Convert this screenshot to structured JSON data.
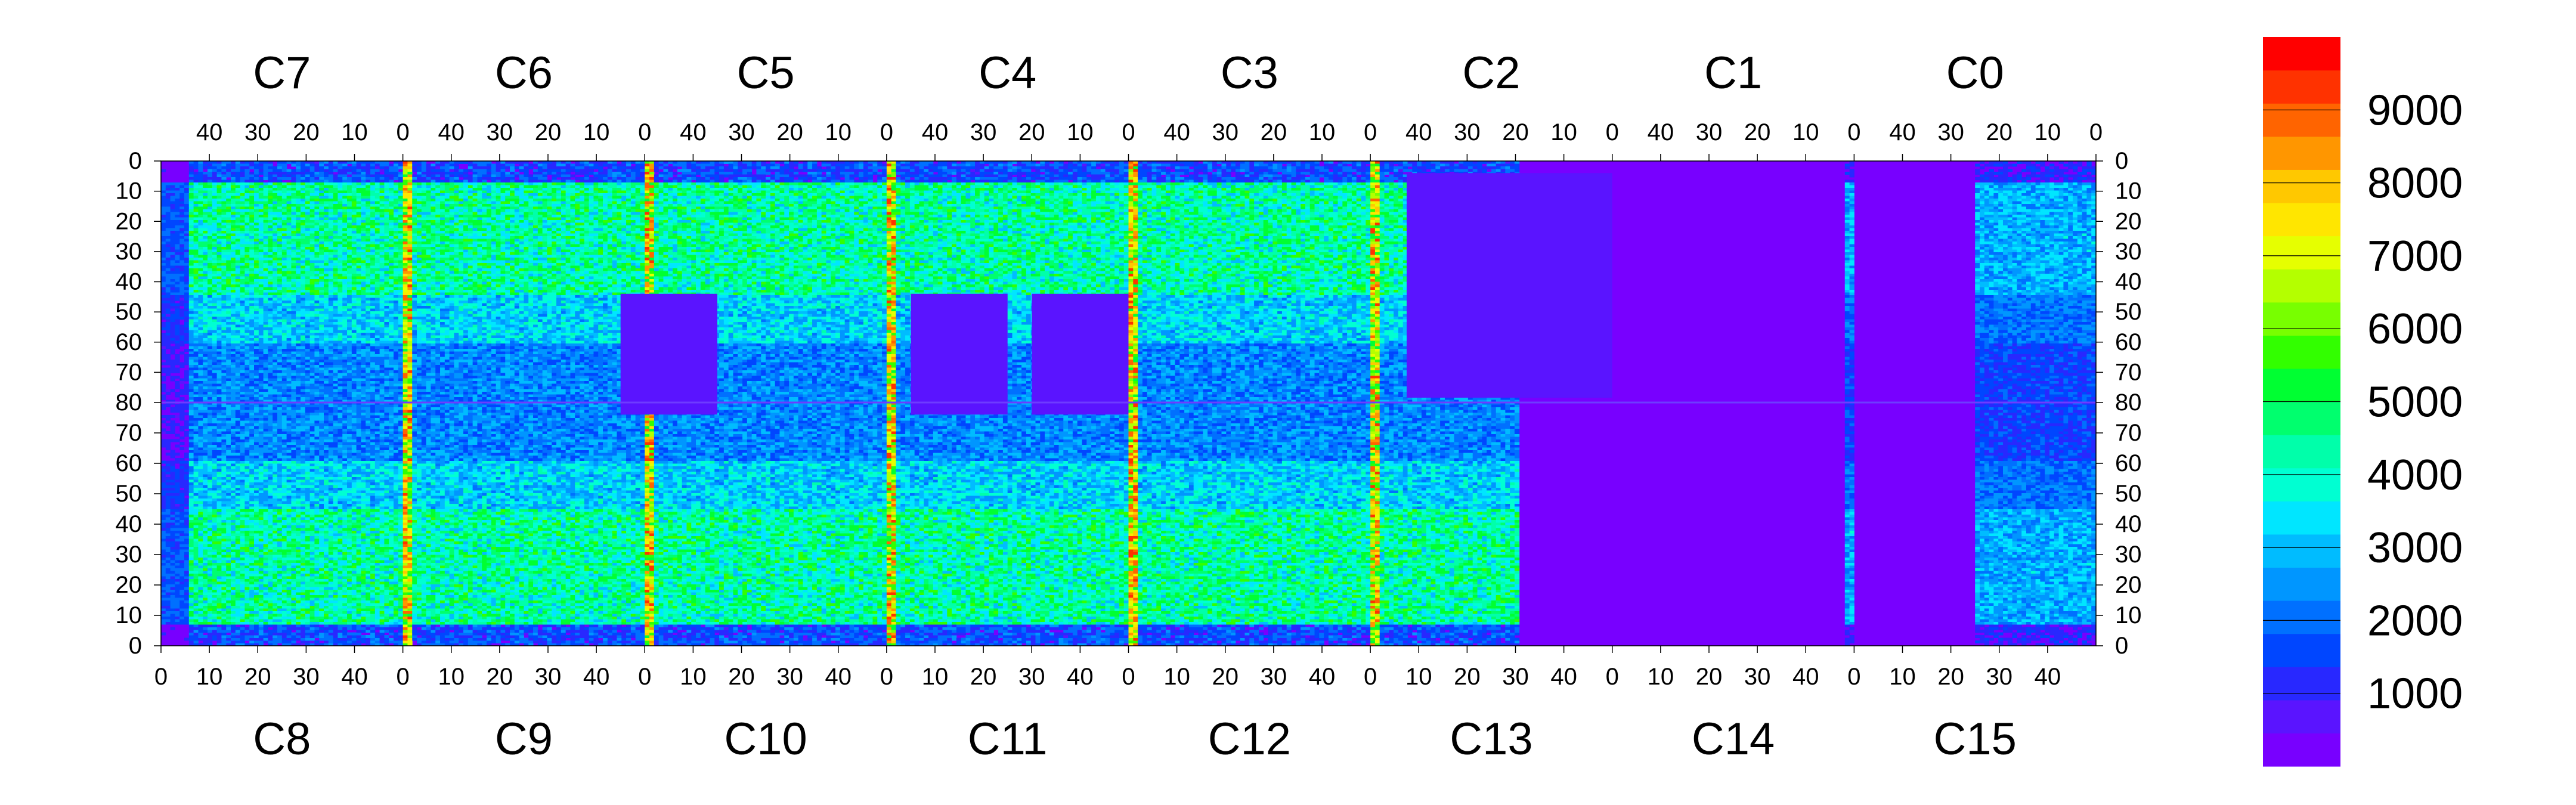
{
  "chart_data": {
    "type": "heatmap",
    "title": "",
    "top_chip_labels": [
      "C7",
      "C6",
      "C5",
      "C4",
      "C3",
      "C2",
      "C1",
      "C0"
    ],
    "bottom_chip_labels": [
      "C8",
      "C9",
      "C10",
      "C11",
      "C12",
      "C13",
      "C14",
      "C15"
    ],
    "top_x_ticks": [
      "40",
      "30",
      "20",
      "10",
      "0"
    ],
    "bottom_x_ticks": [
      "0",
      "10",
      "20",
      "30",
      "40"
    ],
    "top_half_y_ticks": [
      "0",
      "10",
      "20",
      "30",
      "40",
      "50",
      "60",
      "70",
      "80"
    ],
    "bottom_half_y_ticks": [
      "70",
      "60",
      "50",
      "40",
      "30",
      "20",
      "10",
      "0"
    ],
    "columns_per_chip": 52,
    "rows_per_half": 80,
    "colorbar": {
      "min": 0,
      "max": 10000,
      "tick_labels": [
        "1000",
        "2000",
        "3000",
        "4000",
        "5000",
        "6000",
        "7000",
        "8000",
        "9000"
      ],
      "colors": [
        "#7800ff",
        "#5a14ff",
        "#2828ff",
        "#0046ff",
        "#0070ff",
        "#0096ff",
        "#00bcff",
        "#00e6ff",
        "#00ffd2",
        "#00ffaa",
        "#00ff6e",
        "#00ff32",
        "#32ff00",
        "#78ff00",
        "#b4ff00",
        "#e6ff00",
        "#ffe600",
        "#ffc800",
        "#ff9600",
        "#ff6400",
        "#ff3200",
        "#ff0000"
      ]
    },
    "grid": false,
    "legend": "colorbar-right"
  }
}
